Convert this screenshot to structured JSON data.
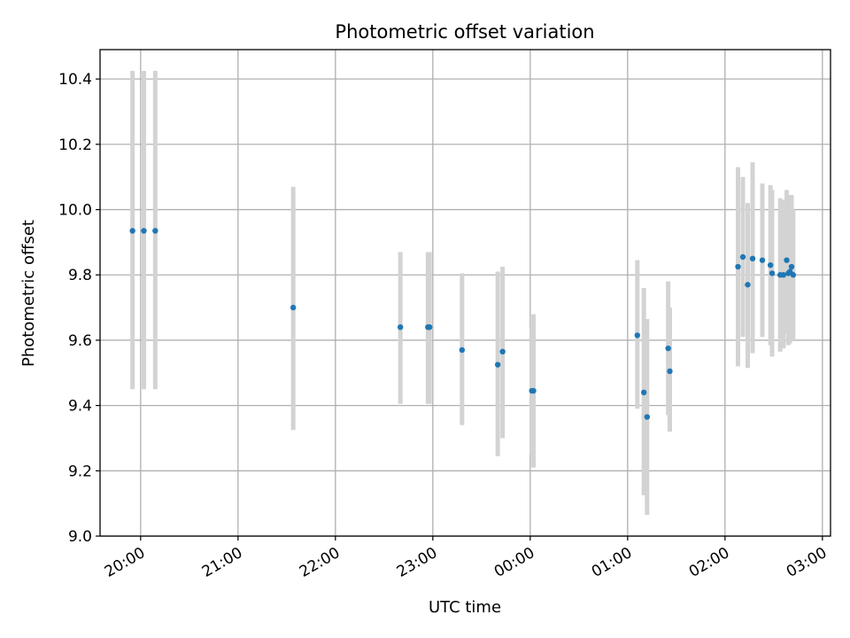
{
  "chart_data": {
    "type": "scatter",
    "title": "Photometric offset variation",
    "xlabel": "UTC time",
    "ylabel": "Photometric offset",
    "xlim": [
      "19:35",
      "03:05"
    ],
    "ylim": [
      9.0,
      10.49
    ],
    "x_ticks": [
      "20:00",
      "21:00",
      "22:00",
      "23:00",
      "00:00",
      "01:00",
      "02:00",
      "03:00"
    ],
    "y_ticks": [
      9.0,
      9.2,
      9.4,
      9.6,
      9.8,
      10.0,
      10.2,
      10.4
    ],
    "grid": true,
    "colors": {
      "point": "#1f77b4",
      "errorbar": "#d3d3d3",
      "grid": "#b0b0b0"
    },
    "points": [
      {
        "time": "19:55",
        "y": 9.935,
        "low": 9.45,
        "high": 10.425
      },
      {
        "time": "20:02",
        "y": 9.935,
        "low": 9.45,
        "high": 10.425
      },
      {
        "time": "20:09",
        "y": 9.935,
        "low": 9.45,
        "high": 10.425
      },
      {
        "time": "21:34",
        "y": 9.7,
        "low": 9.325,
        "high": 10.07
      },
      {
        "time": "22:40",
        "y": 9.64,
        "low": 9.405,
        "high": 9.87
      },
      {
        "time": "22:57",
        "y": 9.64,
        "low": 9.405,
        "high": 9.87
      },
      {
        "time": "22:58",
        "y": 9.64,
        "low": 9.405,
        "high": 9.87
      },
      {
        "time": "23:18",
        "y": 9.57,
        "low": 9.34,
        "high": 9.805
      },
      {
        "time": "23:40",
        "y": 9.525,
        "low": 9.245,
        "high": 9.81
      },
      {
        "time": "23:43",
        "y": 9.565,
        "low": 9.3,
        "high": 9.825
      },
      {
        "time": "00:01",
        "y": 9.445,
        "low": 9.25,
        "high": 9.64
      },
      {
        "time": "00:02",
        "y": 9.445,
        "low": 9.21,
        "high": 9.68
      },
      {
        "time": "01:06",
        "y": 9.615,
        "low": 9.39,
        "high": 9.845
      },
      {
        "time": "01:10",
        "y": 9.44,
        "low": 9.125,
        "high": 9.76
      },
      {
        "time": "01:12",
        "y": 9.365,
        "low": 9.065,
        "high": 9.665
      },
      {
        "time": "01:25",
        "y": 9.575,
        "low": 9.37,
        "high": 9.78
      },
      {
        "time": "01:26",
        "y": 9.505,
        "low": 9.32,
        "high": 9.7
      },
      {
        "time": "02:08",
        "y": 9.825,
        "low": 9.52,
        "high": 10.13
      },
      {
        "time": "02:11",
        "y": 9.855,
        "low": 9.61,
        "high": 10.1
      },
      {
        "time": "02:14",
        "y": 9.77,
        "low": 9.515,
        "high": 10.02
      },
      {
        "time": "02:17",
        "y": 9.85,
        "low": 9.56,
        "high": 10.145
      },
      {
        "time": "02:23",
        "y": 9.845,
        "low": 9.61,
        "high": 10.08
      },
      {
        "time": "02:28",
        "y": 9.83,
        "low": 9.585,
        "high": 10.075
      },
      {
        "time": "02:29",
        "y": 9.805,
        "low": 9.55,
        "high": 10.06
      },
      {
        "time": "02:34",
        "y": 9.8,
        "low": 9.565,
        "high": 10.035
      },
      {
        "time": "02:36",
        "y": 9.8,
        "low": 9.575,
        "high": 10.03
      },
      {
        "time": "02:38",
        "y": 9.845,
        "low": 9.62,
        "high": 10.06
      },
      {
        "time": "02:39",
        "y": 9.805,
        "low": 9.585,
        "high": 10.03
      },
      {
        "time": "02:40",
        "y": 9.81,
        "low": 9.59,
        "high": 10.045
      },
      {
        "time": "02:41",
        "y": 9.825,
        "low": 9.6,
        "high": 10.045
      },
      {
        "time": "02:42",
        "y": 9.8,
        "low": 9.6,
        "high": 10.0
      }
    ]
  }
}
